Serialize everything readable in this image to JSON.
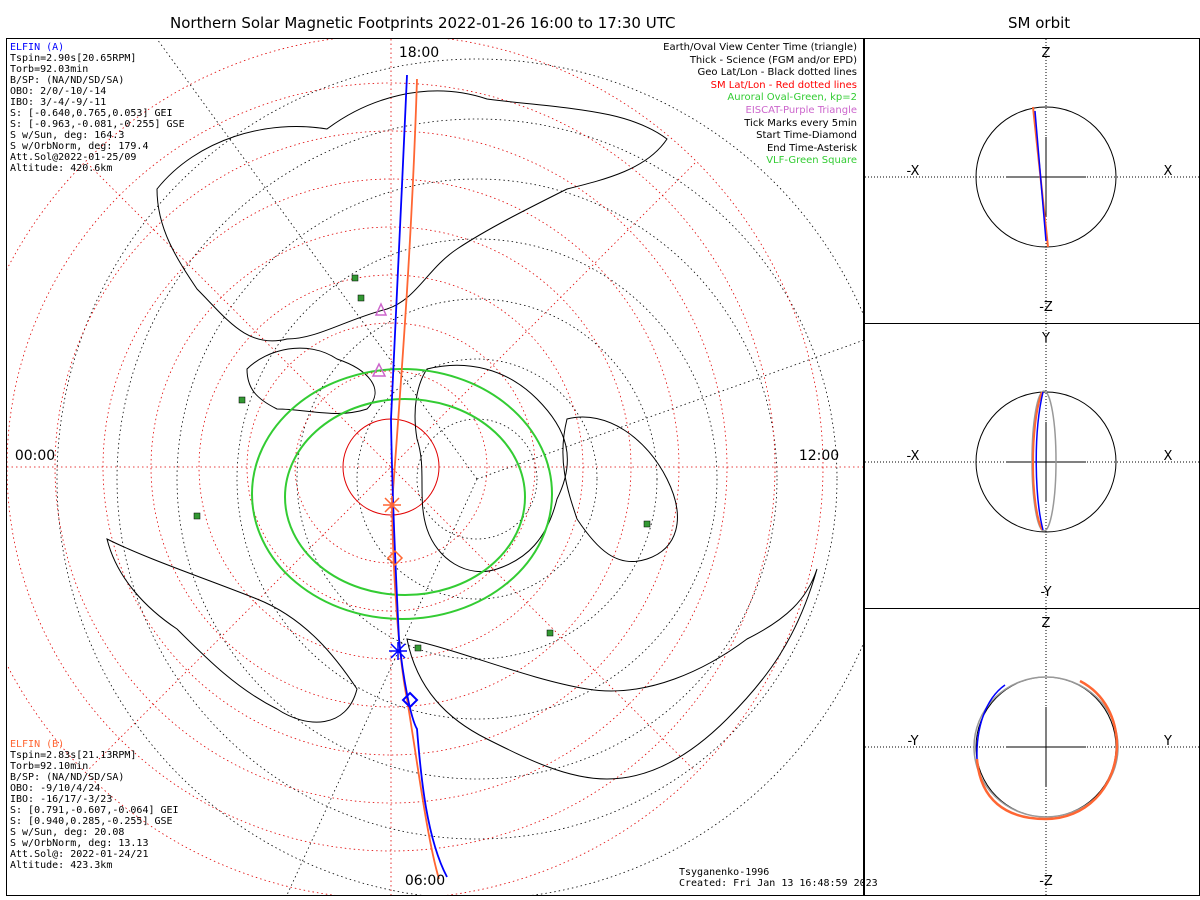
{
  "main": {
    "title": "Northern Solar Magnetic Footprints 2022-01-26 16:00 to 17:30 UTC",
    "mlt_labels": {
      "top": "18:00",
      "left": "00:00",
      "right": "12:00",
      "bottom": "06:00"
    }
  },
  "elfin_a": {
    "name": "ELFIN (A)",
    "color": "#0000ff",
    "lines": [
      "Tspin=2.90s[20.65RPM]",
      "Torb=92.03min",
      "B/SP: (NA/ND/SD/SA)",
      "OBO: 2/0/-10/-14",
      "IBO: 3/-4/-9/-11",
      "S: [-0.640,0.765,0.053] GEI",
      "S: [-0.963,-0.081,-0.255] GSE",
      "S w/Sun, deg: 164.3",
      "S w/OrbNorm, deg: 179.4",
      "Att.Sol@2022-01-25/09",
      "Altitude: 420.6km"
    ]
  },
  "elfin_b": {
    "name": "ELFIN (B)",
    "color": "#ff6633",
    "lines": [
      "Tspin=2.83s[21.13RPM]",
      "Torb=92.10min",
      "B/SP: (NA/ND/SD/SA)",
      "OBO: -9/10/4/24",
      "IBO: -16/17/-3/23",
      "S: [0.791,-0.607,-0.064] GEI",
      "S: [0.940,0.285,-0.255] GSE",
      "S w/Sun, deg: 20.08",
      "S w/OrbNorm, deg: 13.13",
      "Att.Sol@: 2022-01-24/21",
      "Altitude: 423.3km"
    ]
  },
  "legend": [
    {
      "text": "Earth/Oval View Center Time (triangle)",
      "color": "#000000"
    },
    {
      "text": "Thick - Science (FGM and/or EPD)",
      "color": "#000000"
    },
    {
      "text": "Geo Lat/Lon - Black dotted lines",
      "color": "#000000"
    },
    {
      "text": "SM Lat/Lon - Red dotted lines",
      "color": "#ff0000"
    },
    {
      "text": "Auroral Oval-Green, kp=2",
      "color": "#33cc33"
    },
    {
      "text": "EISCAT-Purple Triangle",
      "color": "#cc66cc"
    },
    {
      "text": "Tick Marks every 5min",
      "color": "#000000"
    },
    {
      "text": "Start Time-Diamond",
      "color": "#000000"
    },
    {
      "text": "End Time-Asterisk",
      "color": "#000000"
    },
    {
      "text": "VLF-Green Square",
      "color": "#33cc33"
    }
  ],
  "footer": {
    "model": "Tsyganenko-1996",
    "created": "Created: Fri Jan 13 16:48:59 2023"
  },
  "sm_orbit": {
    "title": "SM orbit",
    "panels": [
      {
        "top": "Z",
        "bottom": "-Z",
        "left": "-X",
        "right": "X"
      },
      {
        "top": "Y",
        "bottom": "-Y",
        "left": "-X",
        "right": "X"
      },
      {
        "top": "Z",
        "bottom": "-Z",
        "left": "-Y",
        "right": "Y"
      }
    ]
  }
}
